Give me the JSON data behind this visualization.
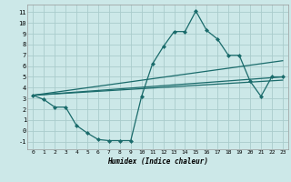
{
  "xlabel": "Humidex (Indice chaleur)",
  "background_color": "#cce8e8",
  "grid_color": "#aacccc",
  "line_color": "#1a6b6b",
  "xlim": [
    -0.5,
    23.5
  ],
  "ylim": [
    -1.7,
    11.7
  ],
  "xticks": [
    0,
    1,
    2,
    3,
    4,
    5,
    6,
    7,
    8,
    9,
    10,
    11,
    12,
    13,
    14,
    15,
    16,
    17,
    18,
    19,
    20,
    21,
    22,
    23
  ],
  "yticks": [
    -1,
    0,
    1,
    2,
    3,
    4,
    5,
    6,
    7,
    8,
    9,
    10,
    11
  ],
  "series_main": {
    "x": [
      0,
      1,
      2,
      3,
      4,
      5,
      6,
      7,
      8,
      9,
      10,
      11,
      12,
      13,
      14,
      15,
      16,
      17,
      18,
      19,
      20,
      21,
      22,
      23
    ],
    "y": [
      3.3,
      2.9,
      2.2,
      2.2,
      0.5,
      -0.2,
      -0.8,
      -0.9,
      -0.9,
      -0.9,
      3.2,
      6.2,
      7.8,
      9.2,
      9.2,
      11.1,
      9.3,
      8.5,
      7.0,
      7.0,
      4.6,
      3.2,
      5.0,
      5.0
    ]
  },
  "series_lines": [
    {
      "x": [
        0,
        23
      ],
      "y": [
        3.3,
        6.5
      ]
    },
    {
      "x": [
        0,
        23
      ],
      "y": [
        3.3,
        5.0
      ]
    },
    {
      "x": [
        0,
        23
      ],
      "y": [
        3.3,
        4.7
      ]
    }
  ]
}
